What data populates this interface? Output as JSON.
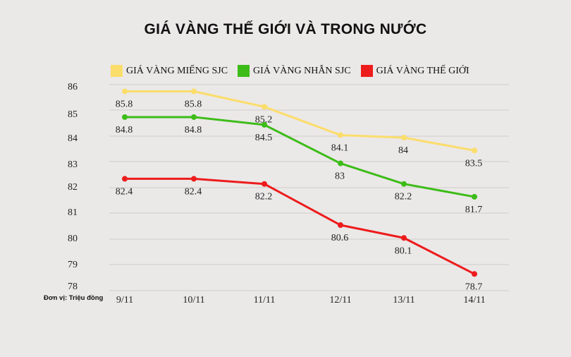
{
  "chart_data": {
    "type": "line",
    "title": "GIÁ VÀNG THẾ GIỚI VÀ TRONG NƯỚC",
    "unit_note": "Đơn vị: Triệu đồng",
    "categories": [
      "9/11",
      "10/11",
      "11/11",
      "12/11",
      "13/11",
      "14/11"
    ],
    "y_ticks": [
      "86",
      "85",
      "84",
      "83",
      "82",
      "81",
      "80",
      "79",
      "78"
    ],
    "ylim": [
      78,
      86
    ],
    "grid": true,
    "legend_position": "top",
    "series": [
      {
        "name": "GIÁ VÀNG MIẾNG SJC",
        "color": "#fbdd6b",
        "values": [
          85.8,
          85.8,
          85.2,
          84.1,
          84,
          83.5
        ],
        "labels": [
          "85.8",
          "85.8",
          "85.2",
          "84.1",
          "84",
          "83.5"
        ]
      },
      {
        "name": "GIÁ VÀNG NHẪN SJC",
        "color": "#3dbc18",
        "values": [
          84.8,
          84.8,
          84.5,
          83,
          82.2,
          81.7
        ],
        "labels": [
          "84.8",
          "84.8",
          "84.5",
          "83",
          "82.2",
          "81.7"
        ]
      },
      {
        "name": "GIÁ VÀNG THẾ GIỚI",
        "color": "#ed1c1c",
        "values": [
          82.4,
          82.4,
          82.2,
          80.6,
          80.1,
          78.7
        ],
        "labels": [
          "82.4",
          "82.4",
          "82.2",
          "80.6",
          "80.1",
          "78.7"
        ]
      }
    ]
  }
}
